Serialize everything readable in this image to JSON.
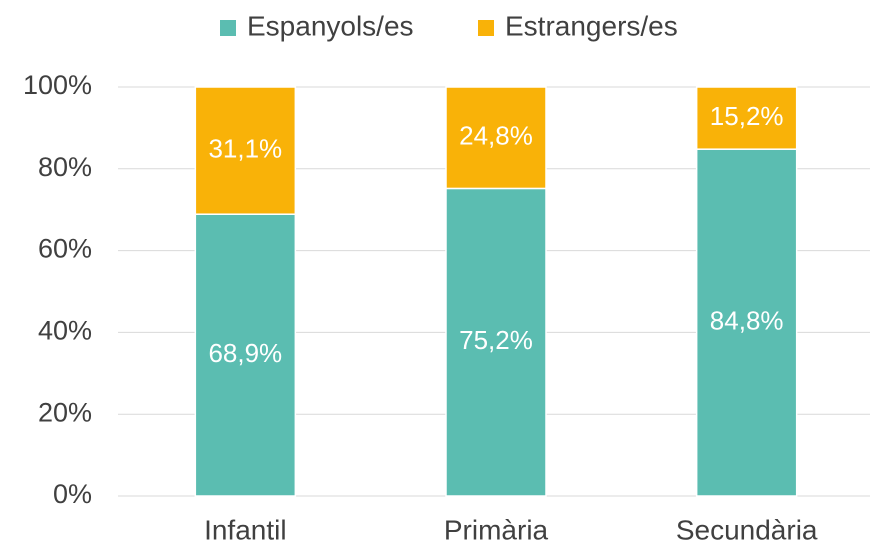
{
  "chart_data": {
    "type": "stacked_bar",
    "categories": [
      "Infantil",
      "Primària",
      "Secundària"
    ],
    "series": [
      {
        "name": "Espanyols/es",
        "color": "#5bbdb1",
        "values": [
          68.9,
          75.2,
          84.8
        ],
        "value_labels": [
          "68,9%",
          "75,2%",
          "84,8%"
        ]
      },
      {
        "name": "Estrangers/es",
        "color": "#f9b208",
        "values": [
          31.1,
          24.8,
          15.2
        ],
        "value_labels": [
          "31,1%",
          "24,8%",
          "15,2%"
        ]
      }
    ],
    "ylim": [
      0,
      100
    ],
    "yticks": [
      {
        "value": 0,
        "label": "0%"
      },
      {
        "value": 20,
        "label": "20%"
      },
      {
        "value": 40,
        "label": "40%"
      },
      {
        "value": 60,
        "label": "60%"
      },
      {
        "value": 80,
        "label": "80%"
      },
      {
        "value": 100,
        "label": "100%"
      }
    ],
    "grid": true,
    "legend": "top"
  }
}
